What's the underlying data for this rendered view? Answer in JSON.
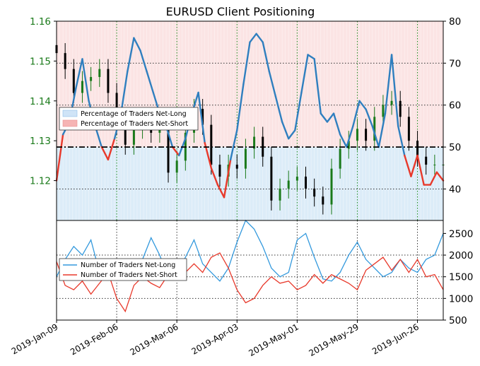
{
  "chart_data": [
    {
      "panel": "price-and-positioning",
      "type": "line",
      "title": "EURUSD Client Positioning",
      "left_axis": {
        "ylim": [
          1.11,
          1.16
        ],
        "ticks": [
          1.12,
          1.13,
          1.14,
          1.15,
          1.16
        ],
        "tick_labels": [
          "1.12",
          "1.13",
          "1.14",
          "1.15",
          "1.16"
        ],
        "color": "#1a7a1a"
      },
      "right_axis": {
        "ylim": [
          32.5,
          80
        ],
        "ticks": [
          40,
          50,
          60,
          70,
          80
        ],
        "tick_labels": [
          "40",
          "50",
          "60",
          "70",
          "80"
        ]
      },
      "reference_line": {
        "value": 50,
        "style": "dash-dot",
        "color": "#000000"
      },
      "shaded_zones": [
        {
          "range": [
            32.5,
            50
          ],
          "color": "#dcecf8"
        },
        {
          "range": [
            50,
            80
          ],
          "color": "#fbe4e4"
        }
      ],
      "legend": {
        "placement": "center-left",
        "entries": [
          {
            "label": "Percentage of Traders Net-Long",
            "color": "#cfe4f7"
          },
          {
            "label": "Percentage of Traders Net-Short",
            "color": "#f6b4b4"
          }
        ]
      },
      "grid": "dotted",
      "series": [
        {
          "name": "Percentage of Traders Net-Long",
          "axis": "right",
          "colors": {
            "above_50": "#2f7fbf",
            "below_50": "#e8392b"
          },
          "x": [
            0,
            3,
            6,
            9,
            12,
            15,
            18,
            21,
            24,
            27,
            30,
            33,
            36,
            39,
            42,
            45,
            48,
            51,
            54,
            57,
            60,
            63,
            66,
            69,
            72,
            75,
            78,
            81,
            84,
            87,
            90,
            93,
            96,
            99,
            102,
            105,
            108,
            111,
            114,
            117,
            120,
            123,
            126,
            129,
            132,
            135,
            138,
            141,
            144,
            147,
            150,
            153,
            156,
            159,
            162,
            165,
            168,
            171,
            174,
            177,
            180
          ],
          "values": [
            42,
            53,
            56,
            64,
            71,
            61,
            55,
            50,
            47,
            52,
            58,
            68,
            76,
            73,
            68,
            63,
            58,
            55,
            50,
            48,
            52,
            58,
            63,
            51,
            45,
            41,
            38,
            47,
            54,
            65,
            75,
            77,
            75,
            68,
            62,
            56,
            52,
            54,
            63,
            72,
            71,
            58,
            56,
            58,
            53,
            50,
            55,
            61,
            59,
            55,
            50,
            58,
            72,
            55,
            48,
            43,
            48,
            41,
            41,
            44,
            42
          ]
        },
        {
          "name": "EURUSD price",
          "axis": "left",
          "type": "candlestick",
          "color": "#1a7a1a",
          "down_color": "#000000",
          "x": [
            0,
            4,
            8,
            12,
            16,
            20,
            24,
            28,
            32,
            36,
            40,
            44,
            48,
            52,
            56,
            60,
            64,
            68,
            72,
            76,
            80,
            84,
            88,
            92,
            96,
            100,
            104,
            108,
            112,
            116,
            120,
            124,
            128,
            132,
            136,
            140,
            144,
            148,
            152,
            156,
            160,
            164,
            168,
            172,
            176,
            180
          ],
          "close": [
            1.152,
            1.148,
            1.142,
            1.145,
            1.146,
            1.148,
            1.142,
            1.134,
            1.129,
            1.133,
            1.135,
            1.132,
            1.134,
            1.122,
            1.125,
            1.132,
            1.138,
            1.134,
            1.124,
            1.121,
            1.124,
            1.123,
            1.128,
            1.131,
            1.126,
            1.115,
            1.118,
            1.12,
            1.121,
            1.118,
            1.116,
            1.114,
            1.123,
            1.128,
            1.13,
            1.133,
            1.13,
            1.136,
            1.139,
            1.14,
            1.136,
            1.13,
            1.126,
            1.124,
            1.124,
            1.124
          ]
        }
      ]
    },
    {
      "panel": "trader-counts",
      "type": "line",
      "right_axis": {
        "ylim": [
          500,
          2800
        ],
        "ticks": [
          500,
          1000,
          1500,
          2000,
          2500
        ],
        "tick_labels": [
          "500",
          "1000",
          "1500",
          "2000",
          "2500"
        ]
      },
      "grid": "dotted",
      "legend": {
        "placement": "center-left",
        "entries": [
          {
            "label": "Number of Traders Net-Long",
            "color": "#3399dd"
          },
          {
            "label": "Number of Traders Net-Short",
            "color": "#e8392b"
          }
        ]
      },
      "x_tick_labels": [
        "2019-Jan-09",
        "2019-Feb-06",
        "2019-Mar-06",
        "2019-Apr-03",
        "2019-May-01",
        "2019-May-29",
        "2019-Jun-26"
      ],
      "x_ticks": [
        0,
        28,
        56,
        84,
        112,
        140,
        168
      ],
      "series": [
        {
          "name": "Number of Traders Net-Long",
          "color": "#3399dd",
          "x": [
            0,
            4,
            8,
            12,
            16,
            20,
            24,
            28,
            32,
            36,
            40,
            44,
            48,
            52,
            56,
            60,
            64,
            68,
            72,
            76,
            80,
            84,
            88,
            92,
            96,
            100,
            104,
            108,
            112,
            116,
            120,
            124,
            128,
            132,
            136,
            140,
            144,
            148,
            152,
            156,
            160,
            164,
            168,
            172,
            176,
            180
          ],
          "values": [
            1500,
            1900,
            2200,
            2000,
            2350,
            1600,
            1500,
            1650,
            1700,
            1550,
            1900,
            2400,
            2000,
            1500,
            1600,
            1950,
            2350,
            1800,
            1600,
            1400,
            1700,
            2300,
            2800,
            2600,
            2200,
            1700,
            1500,
            1600,
            2350,
            2500,
            1950,
            1450,
            1400,
            1600,
            2000,
            2300,
            1900,
            1700,
            1500,
            1600,
            1900,
            1700,
            1600,
            1900,
            2000,
            2500
          ]
        },
        {
          "name": "Number of Traders Net-Short",
          "color": "#e8392b",
          "x": [
            0,
            4,
            8,
            12,
            16,
            20,
            24,
            28,
            32,
            36,
            40,
            44,
            48,
            52,
            56,
            60,
            64,
            68,
            72,
            76,
            80,
            84,
            88,
            92,
            96,
            100,
            104,
            108,
            112,
            116,
            120,
            124,
            128,
            132,
            136,
            140,
            144,
            148,
            152,
            156,
            160,
            164,
            168,
            172,
            176,
            180
          ],
          "values": [
            1850,
            1300,
            1200,
            1400,
            1100,
            1350,
            1600,
            1000,
            700,
            1300,
            1500,
            1350,
            1250,
            1550,
            1800,
            1600,
            1800,
            1600,
            1950,
            2050,
            1700,
            1200,
            900,
            1000,
            1300,
            1500,
            1350,
            1400,
            1200,
            1300,
            1550,
            1350,
            1550,
            1450,
            1350,
            1200,
            1650,
            1800,
            1950,
            1650,
            1900,
            1600,
            1900,
            1500,
            1550,
            1200
          ]
        }
      ]
    }
  ]
}
